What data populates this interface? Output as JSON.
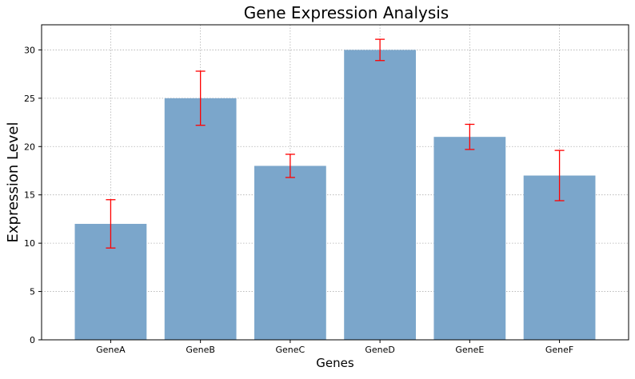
{
  "chart_data": {
    "type": "bar",
    "title": "Gene Expression Analysis",
    "xlabel": "Genes",
    "ylabel": "Expression Level",
    "categories": [
      "GeneA",
      "GeneB",
      "GeneC",
      "GeneD",
      "GeneE",
      "GeneF"
    ],
    "values": [
      12,
      25,
      18,
      30,
      21,
      17
    ],
    "errors": [
      2.5,
      2.8,
      1.2,
      1.1,
      1.3,
      2.6
    ],
    "ylim": [
      0,
      32.6
    ],
    "yticks": [
      0,
      5,
      10,
      15,
      20,
      25,
      30
    ],
    "grid": true,
    "legend": "none",
    "colors": {
      "bar": "#7ba6cb",
      "error": "#ff0000",
      "grid": "#b0b0b0",
      "axis": "#000000"
    }
  }
}
